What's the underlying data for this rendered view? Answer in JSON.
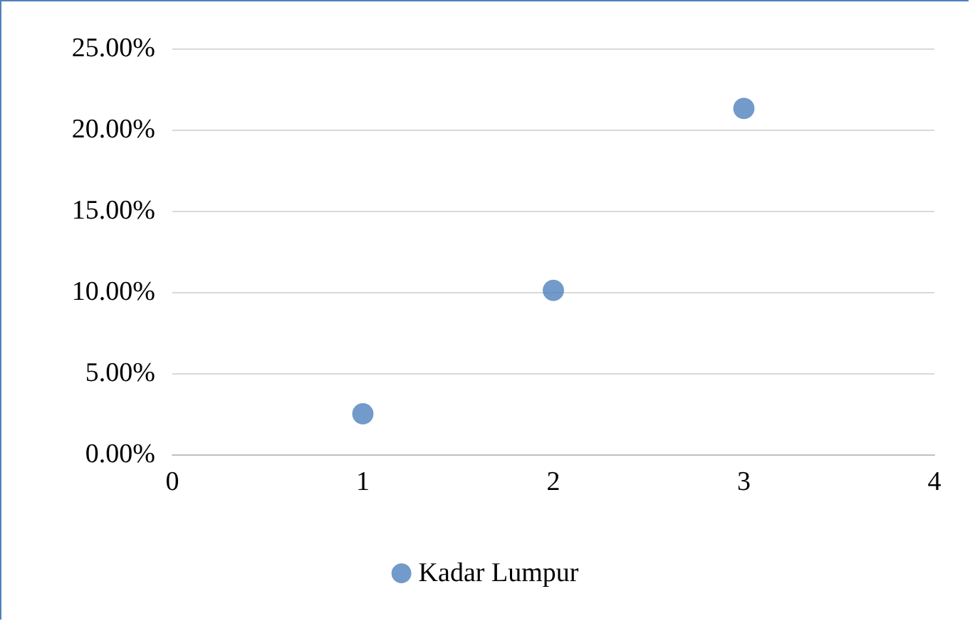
{
  "chart_data": {
    "type": "scatter",
    "x": [
      1,
      2,
      3
    ],
    "series": [
      {
        "name": "Kadar Lumpur",
        "color": "#4f81bd",
        "values": [
          2.5,
          10.1,
          21.3
        ]
      }
    ],
    "xlim": [
      0,
      4
    ],
    "xticks": [
      0,
      1,
      2,
      3,
      4
    ],
    "ylim": [
      0,
      25
    ],
    "yticks": [
      {
        "value": 0,
        "label": "0.00%"
      },
      {
        "value": 5,
        "label": "5.00%"
      },
      {
        "value": 10,
        "label": "10.00%"
      },
      {
        "value": 15,
        "label": "15.00%"
      },
      {
        "value": 20,
        "label": "20.00%"
      },
      {
        "value": 25,
        "label": "25.00%"
      }
    ],
    "grid": "y",
    "legend": "bottom",
    "marker": "circle"
  }
}
